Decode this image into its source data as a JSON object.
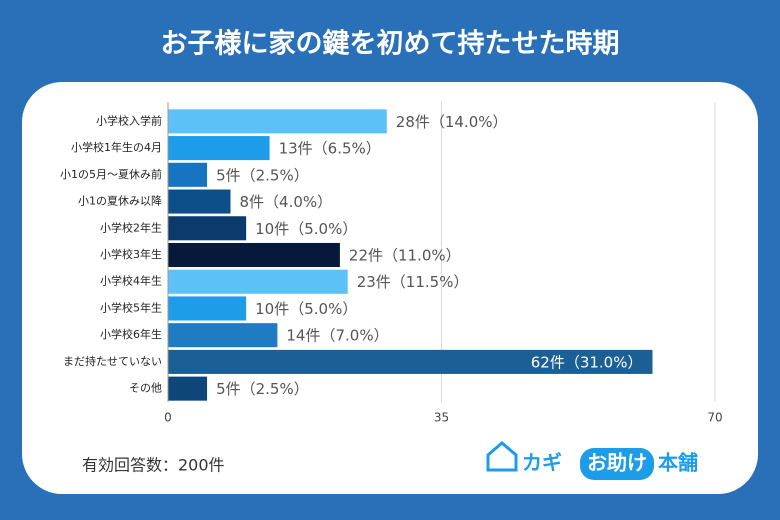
{
  "chart_data": {
    "type": "bar",
    "orientation": "horizontal",
    "title": "お子様に家の鍵を初めて持たせた時期",
    "categories": [
      "小学校入学前",
      "小学校1年生の4月",
      "小1の5月〜夏休み前",
      "小1の夏休み以降",
      "小学校2年生",
      "小学校3年生",
      "小学校4年生",
      "小学校5年生",
      "小学校6年生",
      "まだ持たせていない",
      "その他"
    ],
    "values": [
      28,
      13,
      5,
      8,
      10,
      22,
      23,
      10,
      14,
      62,
      5
    ],
    "value_labels": [
      "28件（14.0%）",
      "13件（6.5%）",
      "5件（2.5%）",
      "8件（4.0%）",
      "10件（5.0%）",
      "22件（11.0%）",
      "23件（11.5%）",
      "10件（5.0%）",
      "14件（7.0%）",
      "62件（31.0%）",
      "5件（2.5%）"
    ],
    "colors": [
      "#5cc1f7",
      "#1c9ce9",
      "#1674c0",
      "#0d4f88",
      "#0b3a6c",
      "#08183b",
      "#5cc1f7",
      "#1c9ce9",
      "#1f7cc3",
      "#1b5f95",
      "#0e4679"
    ],
    "xlim": [
      0,
      70
    ],
    "xticks": [
      0,
      35,
      70
    ],
    "grid": true,
    "footnote": "有効回答数：200件",
    "brand": [
      "カギ",
      "お助け",
      "本舗"
    ]
  }
}
